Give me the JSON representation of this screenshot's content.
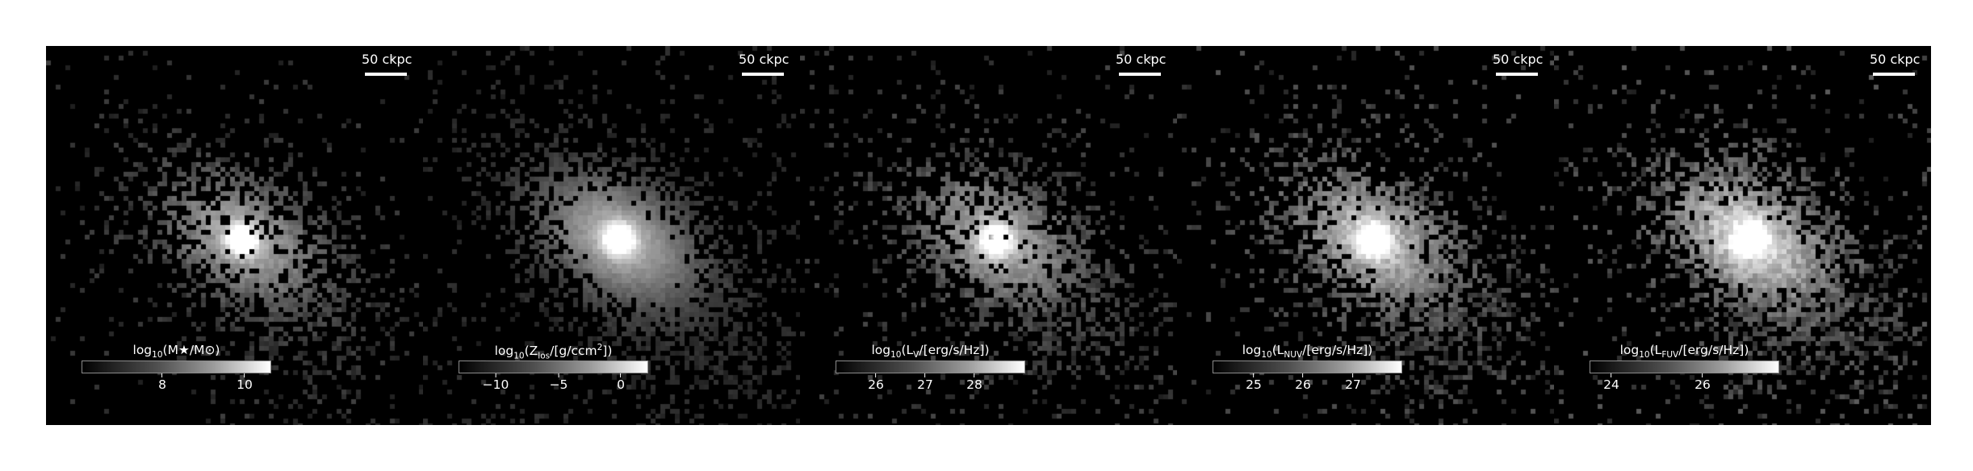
{
  "panels": [
    {
      "scalebar": "50 ckpc",
      "colorbar": {
        "prefix": "log",
        "base": "10",
        "expr": "(M★/M⊙)",
        "ticks": [
          "8",
          "10"
        ]
      },
      "map": {
        "core": 1.0,
        "halo": 0.55,
        "fill": 0.22,
        "noise": 0.25
      }
    },
    {
      "scalebar": "50 ckpc",
      "colorbar": {
        "prefix": "log",
        "base": "10",
        "expr": "(Z",
        "expr_sub": "los",
        "expr_rest": "/[g/ccm",
        "expr_sup": "2",
        "expr_end": "])",
        "ticks": [
          "−10",
          "−5",
          "0"
        ]
      },
      "map": {
        "core": 1.0,
        "halo": 0.62,
        "fill": 0.55,
        "noise": 0.15
      }
    },
    {
      "scalebar": "50 ckpc",
      "colorbar": {
        "prefix": "log",
        "base": "10",
        "expr": "(L",
        "expr_sub": "V",
        "expr_rest": "/[erg/s/Hz])",
        "ticks": [
          "26",
          "27",
          "28"
        ]
      },
      "map": {
        "core": 1.0,
        "halo": 0.55,
        "fill": 0.3,
        "noise": 0.3
      }
    },
    {
      "scalebar": "50 ckpc",
      "colorbar": {
        "prefix": "log",
        "base": "10",
        "expr": "(L",
        "expr_sub": "NUV",
        "expr_rest": "/[erg/s/Hz])",
        "ticks": [
          "25",
          "26",
          "27"
        ]
      },
      "map": {
        "core": 1.0,
        "halo": 0.62,
        "fill": 0.4,
        "noise": 0.4
      }
    },
    {
      "scalebar": "50 ckpc",
      "colorbar": {
        "prefix": "log",
        "base": "10",
        "expr": "(L",
        "expr_sub": "FUV",
        "expr_rest": "/[erg/s/Hz])",
        "ticks": [
          "24",
          "26"
        ]
      },
      "map": {
        "core": 1.0,
        "halo": 0.7,
        "fill": 0.45,
        "noise": 0.45
      }
    }
  ]
}
